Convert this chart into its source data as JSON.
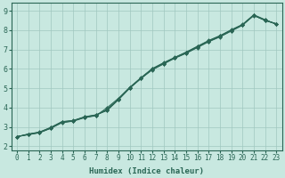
{
  "xlabel": "Humidex (Indice chaleur)",
  "bg_color": "#c8e8e0",
  "grid_color": "#a0c8c0",
  "line_color": "#2a6655",
  "xlim": [
    -0.5,
    23.5
  ],
  "ylim": [
    1.8,
    9.4
  ],
  "xticks": [
    0,
    1,
    2,
    3,
    4,
    5,
    6,
    7,
    8,
    9,
    10,
    11,
    12,
    13,
    14,
    15,
    16,
    17,
    18,
    19,
    20,
    21,
    22,
    23
  ],
  "yticks": [
    2,
    3,
    4,
    5,
    6,
    7,
    8,
    9
  ],
  "lines": [
    [
      2.5,
      2.62,
      2.72,
      2.95,
      3.25,
      3.32,
      3.52,
      3.62,
      3.85,
      4.4,
      5.0,
      5.5,
      5.95,
      6.25,
      6.55,
      6.8,
      7.1,
      7.4,
      7.65,
      7.95,
      8.25,
      8.78,
      8.5,
      8.32
    ],
    [
      2.5,
      2.63,
      2.73,
      2.97,
      3.27,
      3.33,
      3.5,
      3.6,
      3.9,
      4.43,
      5.02,
      5.52,
      5.98,
      6.28,
      6.58,
      6.83,
      7.13,
      7.43,
      7.68,
      7.98,
      8.28,
      8.75,
      8.52,
      8.34
    ],
    [
      2.5,
      2.6,
      2.7,
      2.93,
      3.22,
      3.3,
      3.48,
      3.58,
      4.0,
      4.48,
      5.05,
      5.55,
      6.02,
      6.32,
      6.6,
      6.87,
      7.17,
      7.47,
      7.72,
      8.02,
      8.3,
      8.8,
      8.55,
      8.3
    ],
    [
      2.5,
      2.61,
      2.71,
      2.94,
      3.24,
      3.31,
      3.5,
      3.6,
      3.92,
      4.45,
      5.03,
      5.53,
      6.0,
      6.3,
      6.58,
      6.85,
      7.15,
      7.45,
      7.7,
      8.0,
      8.27,
      8.77,
      8.53,
      8.32
    ],
    [
      2.5,
      2.64,
      2.74,
      2.98,
      3.28,
      3.34,
      3.53,
      3.63,
      3.87,
      4.42,
      5.01,
      5.51,
      5.97,
      6.27,
      6.57,
      6.82,
      7.12,
      7.42,
      7.67,
      7.97,
      8.26,
      8.76,
      8.51,
      8.33
    ]
  ],
  "marker": "D",
  "markersize": 2.0,
  "linewidth": 0.7,
  "xlabel_fontsize": 6.5,
  "tick_fontsize": 5.5
}
